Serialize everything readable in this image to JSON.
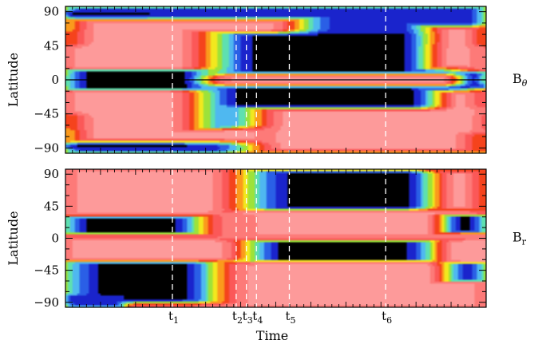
{
  "chart_data": {
    "type": "heatmap",
    "x_axis_label": "Time",
    "time_markers": [
      {
        "base": "t",
        "sub": "1",
        "x": 0.2542
      },
      {
        "base": "t",
        "sub": "2",
        "x": 0.4059
      },
      {
        "base": "t",
        "sub": "3",
        "x": 0.4301
      },
      {
        "base": "t",
        "sub": "4",
        "x": 0.4541
      },
      {
        "base": "t",
        "sub": "5",
        "x": 0.5322
      },
      {
        "base": "t",
        "sub": "6",
        "x": 0.7612
      }
    ],
    "colormap": [
      "#000000",
      "#1a24cc",
      "#2a5fe6",
      "#4fb8f0",
      "#5ee0b0",
      "#9de23a",
      "#f2e81e",
      "#fb9a1c",
      "#f5431c",
      "#fb5858",
      "#fd7a78",
      "#fd9a9a"
    ],
    "panels": [
      {
        "id": "btheta",
        "field_label": {
          "base": "B",
          "sub": "θ"
        },
        "y_axis_label": "Latitude",
        "yticks": [
          90,
          45,
          0,
          -45,
          -90
        ],
        "ylim": [
          -97,
          97
        ],
        "equator_line": true,
        "features": [
          {
            "level": 1,
            "x0": 0.0,
            "x1": 1.0,
            "y0": 46,
            "y1": 97,
            "edge": 0.1
          },
          {
            "level": 1,
            "x0": 0.0,
            "x1": 1.0,
            "y0": -97,
            "y1": -46,
            "edge": 0.1
          },
          {
            "level": 0,
            "x0": 0.0,
            "x1": 0.2,
            "y0": 65,
            "y1": 90,
            "edge": 0.08
          },
          {
            "level": 0,
            "x0": 0.0,
            "x1": 0.3,
            "y0": -90,
            "y1": -66,
            "edge": 0.1
          },
          {
            "level": 11,
            "x0": 0.0,
            "x1": 0.56,
            "y0": 10,
            "y1": 80,
            "edge": 0.18
          },
          {
            "level": 11,
            "x0": 0.0,
            "x1": 0.5,
            "y0": -82,
            "y1": -12,
            "edge": 0.18
          },
          {
            "level": 0,
            "x0": 0.0,
            "x1": 0.34,
            "y0": -13,
            "y1": 13,
            "edge": 0.14
          },
          {
            "level": 11,
            "x0": 0.36,
            "x1": 0.96,
            "y0": -28,
            "y1": 28,
            "edge": 0.18
          },
          {
            "level": 0,
            "x0": 0.36,
            "x1": 0.93,
            "y0": 8,
            "y1": 62,
            "edge": 0.22
          },
          {
            "level": 0,
            "x0": 0.33,
            "x1": 0.98,
            "y0": -64,
            "y1": -8,
            "edge": 0.2
          },
          {
            "level": 11,
            "x0": 0.44,
            "x1": 1.0,
            "y0": -95,
            "y1": -38,
            "edge": 0.2
          },
          {
            "level": 0,
            "x0": 0.94,
            "x1": 1.0,
            "y0": -10,
            "y1": 10,
            "edge": 0.1
          },
          {
            "level": 11,
            "x0": 0.86,
            "x1": 1.0,
            "y0": 15,
            "y1": 70,
            "edge": 0.14
          },
          {
            "level": 11,
            "x0": 0.88,
            "x1": 1.0,
            "y0": -70,
            "y1": -15,
            "edge": 0.14
          }
        ]
      },
      {
        "id": "br",
        "field_label": {
          "base": "B",
          "sub": "r"
        },
        "y_axis_label": "Latitude",
        "yticks": [
          90,
          45,
          0,
          -45,
          -90
        ],
        "ylim": [
          -97,
          97
        ],
        "equator_line": false,
        "features": [
          {
            "level": 11,
            "x0": 0.0,
            "x1": 0.44,
            "y0": 35,
            "y1": 97,
            "edge": 0.2
          },
          {
            "level": 0,
            "x0": 0.0,
            "x1": 0.31,
            "y0": 7,
            "y1": 30,
            "edge": 0.14
          },
          {
            "level": 11,
            "x0": 0.0,
            "x1": 0.99,
            "y0": -34,
            "y1": -3,
            "edge": 0.14
          },
          {
            "level": 0,
            "x0": 0.0,
            "x1": 0.38,
            "y0": -90,
            "y1": -33,
            "edge": 0.22
          },
          {
            "level": 1,
            "x0": 0.0,
            "x1": 0.14,
            "y0": -97,
            "y1": -80,
            "edge": 0.06
          },
          {
            "level": 0,
            "x0": 0.44,
            "x1": 1.0,
            "y0": 40,
            "y1": 95,
            "edge": 0.24
          },
          {
            "level": 11,
            "x0": 0.43,
            "x1": 0.95,
            "y0": 4,
            "y1": 38,
            "edge": 0.2
          },
          {
            "level": 0,
            "x0": 0.44,
            "x1": 0.88,
            "y0": -32,
            "y1": -4,
            "edge": 0.18
          },
          {
            "level": 11,
            "x0": 0.38,
            "x1": 1.0,
            "y0": -97,
            "y1": -35,
            "edge": 0.22
          },
          {
            "level": 11,
            "x0": 0.87,
            "x1": 1.0,
            "y0": 40,
            "y1": 95,
            "edge": 0.14
          },
          {
            "level": 0,
            "x0": 0.9,
            "x1": 1.0,
            "y0": 8,
            "y1": 32,
            "edge": 0.1
          },
          {
            "level": 11,
            "x0": 0.9,
            "x1": 1.0,
            "y0": -32,
            "y1": -4,
            "edge": 0.1
          },
          {
            "level": 0,
            "x0": 0.91,
            "x1": 1.0,
            "y0": -60,
            "y1": -35,
            "edge": 0.12
          }
        ]
      }
    ]
  }
}
